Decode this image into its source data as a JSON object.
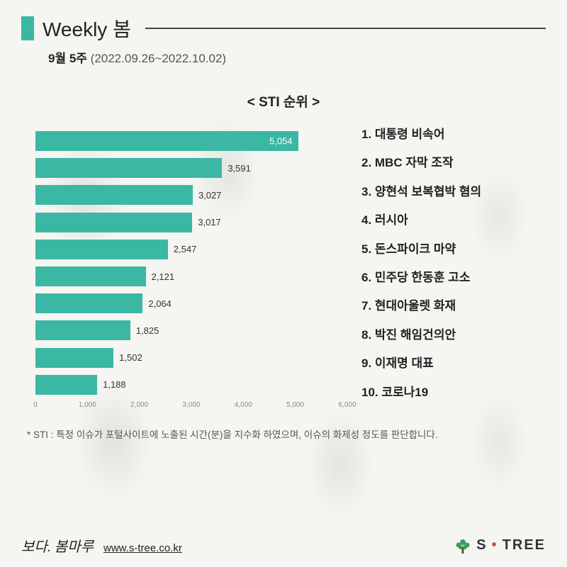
{
  "header": {
    "title": "Weekly 봄",
    "week_label": "9월 5주",
    "date_range": "(2022.09.26~2022.10.02)"
  },
  "chart": {
    "title": "< STI 순위 >",
    "type": "bar-horizontal",
    "bar_color": "#3ab8a3",
    "background_color": "#f5f5f2",
    "label_fontsize": 13,
    "x_axis": {
      "min": 0,
      "max": 6000,
      "step": 1000,
      "tick_labels": [
        "0",
        "1,000",
        "2,000",
        "3,000",
        "4,000",
        "5,000",
        "6,000"
      ],
      "tick_color": "#888888"
    },
    "bars": [
      {
        "value": 5054,
        "label": "5,054",
        "label_inside": true
      },
      {
        "value": 3591,
        "label": "3,591",
        "label_inside": false
      },
      {
        "value": 3027,
        "label": "3,027",
        "label_inside": false
      },
      {
        "value": 3017,
        "label": "3,017",
        "label_inside": false
      },
      {
        "value": 2547,
        "label": "2,547",
        "label_inside": false
      },
      {
        "value": 2121,
        "label": "2,121",
        "label_inside": false
      },
      {
        "value": 2064,
        "label": "2,064",
        "label_inside": false
      },
      {
        "value": 1825,
        "label": "1,825",
        "label_inside": false
      },
      {
        "value": 1502,
        "label": "1,502",
        "label_inside": false
      },
      {
        "value": 1188,
        "label": "1,188",
        "label_inside": false
      }
    ]
  },
  "ranking": {
    "items": [
      "1. 대통령 비속어",
      "2. MBC 자막 조작",
      "3. 양현석 보복협박 혐의",
      "4. 러시아",
      "5. 돈스파이크 마약",
      "6. 민주당 한동훈 고소",
      "7. 현대아울렛 화재",
      "8. 박진 해임건의안",
      "9. 이재명 대표",
      "10. 코로나19"
    ]
  },
  "footnote": "* STI : 특정 이슈가 포털사이트에 노출된 시간(분)을 지수화 하였으며, 이슈의 화제성 정도를 판단합니다.",
  "footer": {
    "slogan": "보다. 봄마루",
    "url": "www.s-tree.co.kr",
    "logo_text_1": "S",
    "logo_text_2": "TREE",
    "logo_accent_color": "#d94a3a",
    "logo_tree_color": "#3a9e5a"
  }
}
